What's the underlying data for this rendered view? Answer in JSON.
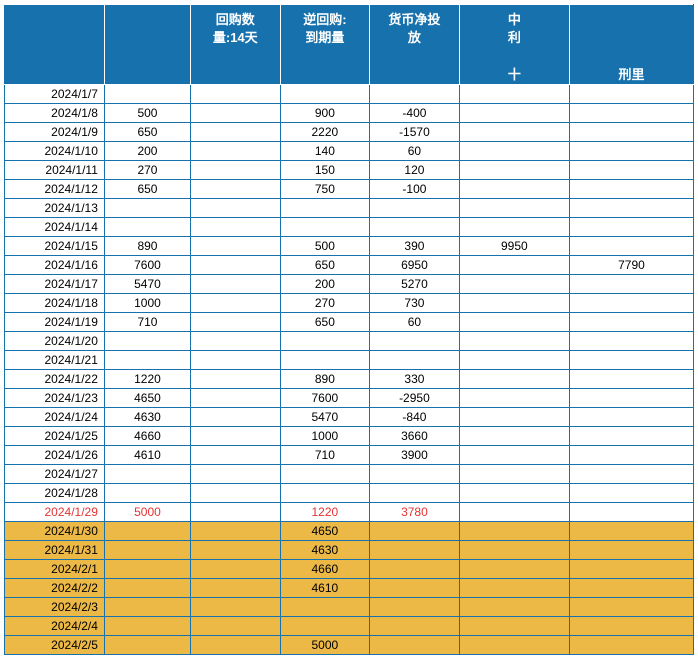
{
  "colors": {
    "border": "#1771ad",
    "header_bg": "#1771ad",
    "header_text": "#ffffff",
    "row_bg": "#ffffff",
    "highlight_bg": "#ecb846",
    "red_text": "#e53232"
  },
  "headers": [
    "",
    "",
    "回购数\n量:14天",
    "逆回购:\n到期量",
    "货币净投\n放",
    "中\n利\n\n十",
    "\n\n\n刑里"
  ],
  "rows": [
    {
      "date": "2024/1/7",
      "c2": "",
      "c3": "",
      "c4": "",
      "c5": "",
      "c6": "",
      "c7": "",
      "style": ""
    },
    {
      "date": "2024/1/8",
      "c2": "500",
      "c3": "",
      "c4": "900",
      "c5": "-400",
      "c6": "",
      "c7": "",
      "style": ""
    },
    {
      "date": "2024/1/9",
      "c2": "650",
      "c3": "",
      "c4": "2220",
      "c5": "-1570",
      "c6": "",
      "c7": "",
      "style": ""
    },
    {
      "date": "2024/1/10",
      "c2": "200",
      "c3": "",
      "c4": "140",
      "c5": "60",
      "c6": "",
      "c7": "",
      "style": ""
    },
    {
      "date": "2024/1/11",
      "c2": "270",
      "c3": "",
      "c4": "150",
      "c5": "120",
      "c6": "",
      "c7": "",
      "style": ""
    },
    {
      "date": "2024/1/12",
      "c2": "650",
      "c3": "",
      "c4": "750",
      "c5": "-100",
      "c6": "",
      "c7": "",
      "style": ""
    },
    {
      "date": "2024/1/13",
      "c2": "",
      "c3": "",
      "c4": "",
      "c5": "",
      "c6": "",
      "c7": "",
      "style": ""
    },
    {
      "date": "2024/1/14",
      "c2": "",
      "c3": "",
      "c4": "",
      "c5": "",
      "c6": "",
      "c7": "",
      "style": ""
    },
    {
      "date": "2024/1/15",
      "c2": "890",
      "c3": "",
      "c4": "500",
      "c5": "390",
      "c6": "9950",
      "c7": "",
      "style": ""
    },
    {
      "date": "2024/1/16",
      "c2": "7600",
      "c3": "",
      "c4": "650",
      "c5": "6950",
      "c6": "",
      "c7": "7790",
      "style": ""
    },
    {
      "date": "2024/1/17",
      "c2": "5470",
      "c3": "",
      "c4": "200",
      "c5": "5270",
      "c6": "",
      "c7": "",
      "style": ""
    },
    {
      "date": "2024/1/18",
      "c2": "1000",
      "c3": "",
      "c4": "270",
      "c5": "730",
      "c6": "",
      "c7": "",
      "style": ""
    },
    {
      "date": "2024/1/19",
      "c2": "710",
      "c3": "",
      "c4": "650",
      "c5": "60",
      "c6": "",
      "c7": "",
      "style": ""
    },
    {
      "date": "2024/1/20",
      "c2": "",
      "c3": "",
      "c4": "",
      "c5": "",
      "c6": "",
      "c7": "",
      "style": ""
    },
    {
      "date": "2024/1/21",
      "c2": "",
      "c3": "",
      "c4": "",
      "c5": "",
      "c6": "",
      "c7": "",
      "style": ""
    },
    {
      "date": "2024/1/22",
      "c2": "1220",
      "c3": "",
      "c4": "890",
      "c5": "330",
      "c6": "",
      "c7": "",
      "style": ""
    },
    {
      "date": "2024/1/23",
      "c2": "4650",
      "c3": "",
      "c4": "7600",
      "c5": "-2950",
      "c6": "",
      "c7": "",
      "style": ""
    },
    {
      "date": "2024/1/24",
      "c2": "4630",
      "c3": "",
      "c4": "5470",
      "c5": "-840",
      "c6": "",
      "c7": "",
      "style": ""
    },
    {
      "date": "2024/1/25",
      "c2": "4660",
      "c3": "",
      "c4": "1000",
      "c5": "3660",
      "c6": "",
      "c7": "",
      "style": ""
    },
    {
      "date": "2024/1/26",
      "c2": "4610",
      "c3": "",
      "c4": "710",
      "c5": "3900",
      "c6": "",
      "c7": "",
      "style": ""
    },
    {
      "date": "2024/1/27",
      "c2": "",
      "c3": "",
      "c4": "",
      "c5": "",
      "c6": "",
      "c7": "",
      "style": ""
    },
    {
      "date": "2024/1/28",
      "c2": "",
      "c3": "",
      "c4": "",
      "c5": "",
      "c6": "",
      "c7": "",
      "style": ""
    },
    {
      "date": "2024/1/29",
      "c2": "5000",
      "c3": "",
      "c4": "1220",
      "c5": "3780",
      "c6": "",
      "c7": "",
      "style": "red"
    },
    {
      "date": "2024/1/30",
      "c2": "",
      "c3": "",
      "c4": "4650",
      "c5": "",
      "c6": "",
      "c7": "",
      "style": "hl"
    },
    {
      "date": "2024/1/31",
      "c2": "",
      "c3": "",
      "c4": "4630",
      "c5": "",
      "c6": "",
      "c7": "",
      "style": "hl"
    },
    {
      "date": "2024/2/1",
      "c2": "",
      "c3": "",
      "c4": "4660",
      "c5": "",
      "c6": "",
      "c7": "",
      "style": "hl"
    },
    {
      "date": "2024/2/2",
      "c2": "",
      "c3": "",
      "c4": "4610",
      "c5": "",
      "c6": "",
      "c7": "",
      "style": "hl"
    },
    {
      "date": "2024/2/3",
      "c2": "",
      "c3": "",
      "c4": "",
      "c5": "",
      "c6": "",
      "c7": "",
      "style": "hl"
    },
    {
      "date": "2024/2/4",
      "c2": "",
      "c3": "",
      "c4": "",
      "c5": "",
      "c6": "",
      "c7": "",
      "style": "hl"
    },
    {
      "date": "2024/2/5",
      "c2": "",
      "c3": "",
      "c4": "5000",
      "c5": "",
      "c6": "",
      "c7": "",
      "style": "hl"
    }
  ]
}
